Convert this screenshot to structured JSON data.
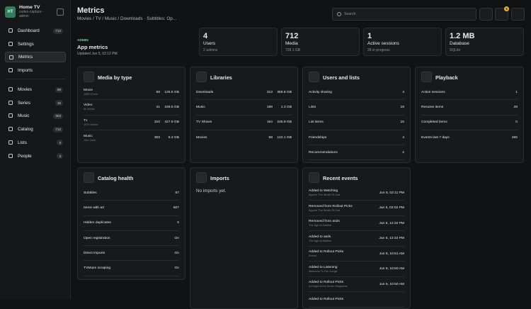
{
  "sidebar": {
    "avatar": "HT",
    "name": "Home TV",
    "subtitle": "codex-capture · admin",
    "nav": [
      {
        "label": "Dashboard",
        "count": 712
      },
      {
        "label": "Settings"
      },
      {
        "label": "Metrics",
        "active": true
      },
      {
        "label": "Imports"
      }
    ],
    "library": [
      {
        "label": "Movies",
        "count": 99
      },
      {
        "label": "Series",
        "count": 15
      },
      {
        "label": "Music",
        "count": 303
      },
      {
        "label": "Catalog",
        "count": 712
      },
      {
        "label": "Lists",
        "count": 3
      },
      {
        "label": "People",
        "count": 3
      }
    ]
  },
  "header": {
    "title": "Metrics",
    "breadcrumb": "Movies / TV / Music / Downloads · Subtitles: Op...",
    "search_placeholder": "Search",
    "notification_count": 5
  },
  "summary": {
    "eyebrow": "ADMIN",
    "title": "App metrics",
    "updated": "Updated Jun 5, 02:12 PM"
  },
  "stats": [
    {
      "value": "4",
      "label": "Users",
      "note": "2 admins"
    },
    {
      "value": "712",
      "label": "Media",
      "note": "728.1 GB"
    },
    {
      "value": "1",
      "label": "Active sessions",
      "note": "28 in progress"
    },
    {
      "value": "1.2 MB",
      "label": "Database",
      "note": "SQLite"
    }
  ],
  "panels": [
    {
      "title": "Media by type",
      "rows": [
        {
          "label": "Movie",
          "sub": "1080 57min",
          "values": [
            "58",
            "125.5 GB"
          ]
        },
        {
          "label": "Video",
          "sub": "9h 32min",
          "values": [
            "41",
            "169.5 GB"
          ]
        },
        {
          "label": "Tv",
          "sub": "107h 54min",
          "values": [
            "310",
            "427.9 GB"
          ]
        },
        {
          "label": "Music",
          "sub": "10hr 2min",
          "values": [
            "303",
            "5.2 GB"
          ]
        }
      ]
    },
    {
      "title": "Libraries",
      "rows": [
        {
          "label": "Downloads",
          "values": [
            "313",
            "358.8 GB"
          ]
        },
        {
          "label": "Music",
          "values": [
            "189",
            "1.3 GB"
          ]
        },
        {
          "label": "TV Shows",
          "values": [
            "154",
            "245.9 GB"
          ]
        },
        {
          "label": "Movies",
          "values": [
            "58",
            "122.1 GB"
          ]
        }
      ]
    },
    {
      "title": "Users and lists",
      "rows": [
        {
          "label": "Activity sharing",
          "values": [
            "4"
          ]
        },
        {
          "label": "Lists",
          "values": [
            "18"
          ]
        },
        {
          "label": "List items",
          "values": [
            "15"
          ]
        },
        {
          "label": "Friendships",
          "values": [
            "4"
          ]
        },
        {
          "label": "Recommendations",
          "values": [
            "2"
          ]
        }
      ]
    },
    {
      "title": "Playback",
      "rows": [
        {
          "label": "Active sessions",
          "values": [
            "1"
          ]
        },
        {
          "label": "Resume items",
          "values": [
            "28"
          ]
        },
        {
          "label": "Completed items",
          "values": [
            "0"
          ]
        },
        {
          "label": "Events last 7 days",
          "values": [
            "265"
          ]
        }
      ]
    },
    {
      "title": "Catalog health",
      "rows": [
        {
          "label": "Subtitles",
          "values": [
            "87"
          ]
        },
        {
          "label": "Items with art",
          "values": [
            "507"
          ]
        },
        {
          "label": "Hidden duplicates",
          "values": [
            "5"
          ]
        },
        {
          "label": "Open registration",
          "values": [
            "On"
          ]
        },
        {
          "label": "Direct imports",
          "values": [
            "On"
          ]
        },
        {
          "label": "TVMaze scraping",
          "values": [
            "On"
          ]
        }
      ]
    },
    {
      "title": "Imports",
      "empty": "No imports yet."
    }
  ],
  "recent_events": {
    "title": "Recent events",
    "events": [
      {
        "title": "Added to Watching",
        "item": "Aguirre The Wrath Of God",
        "time": "Jun 5, 02:11 PM"
      },
      {
        "title": "Removed from Rollout Picks",
        "item": "Aguirre The Wrath Of God",
        "time": "Jun 5, 02:02 PM"
      },
      {
        "title": "Removed from asds",
        "item": "The Age of Adaline",
        "time": "Jun 5, 12:32 PM"
      },
      {
        "title": "Added to asds",
        "item": "The Age of Adaline",
        "time": "Jun 5, 12:32 PM"
      },
      {
        "title": "Added to Rollout Picks",
        "item": "Arrival",
        "time": "Jun 5, 10:51 AM"
      },
      {
        "title": "Added to Listening",
        "item": "Welcome To The Jungle",
        "time": "Jun 5, 10:50 AM"
      },
      {
        "title": "Added to Rollout Picks",
        "item": "A Knight of the Seven Kingdoms",
        "time": "Jun 5, 10:50 AM"
      },
      {
        "title": "Added to Rollout Picks"
      }
    ]
  }
}
